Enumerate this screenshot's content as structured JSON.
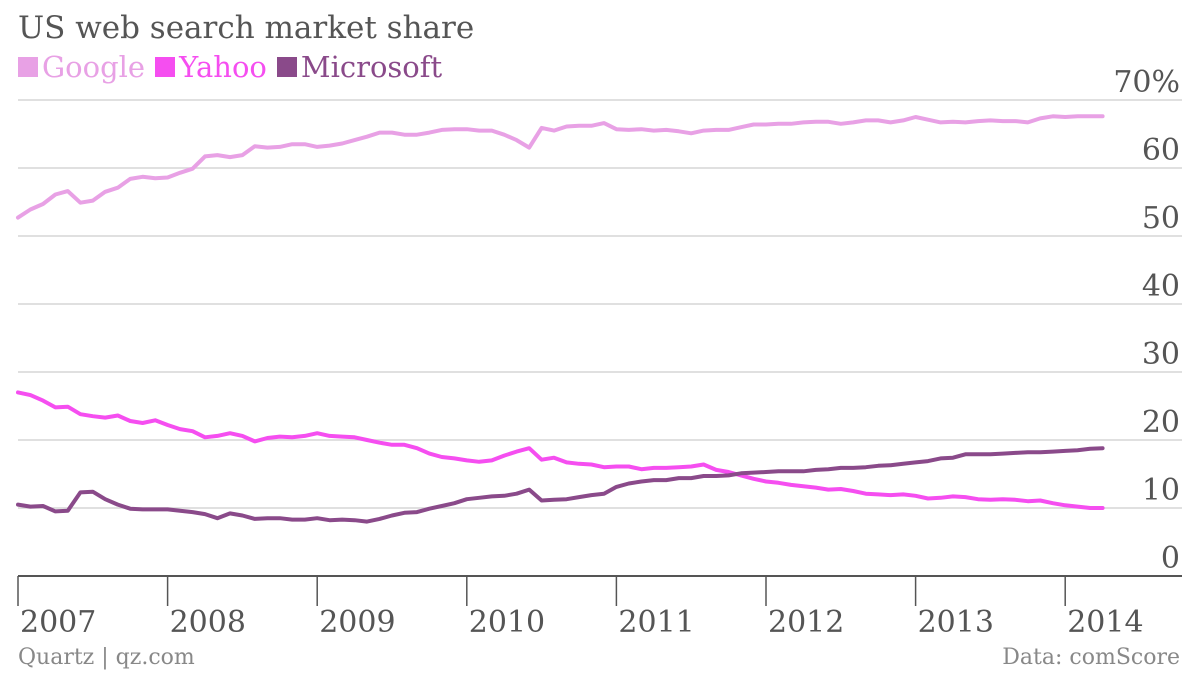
{
  "title": "US web search market share",
  "source_left": "Quartz | qz.com",
  "source_right": "Data: comScore",
  "colors": {
    "google": "#e8a1e5",
    "yahoo": "#f54ef0",
    "microsoft": "#8a4a8a",
    "grid": "#d6d6d6",
    "axis": "#555555"
  },
  "chart_data": {
    "type": "line",
    "title": "US web search market share",
    "ylim": [
      0,
      70
    ],
    "y_ticks": [
      0,
      10,
      20,
      30,
      40,
      50,
      60,
      70
    ],
    "y_tick_labels": [
      "0",
      "10",
      "20",
      "30",
      "40",
      "50",
      "60",
      "70%"
    ],
    "x_ticks": [
      2007,
      2008,
      2009,
      2010,
      2011,
      2012,
      2013,
      2014
    ],
    "x_tick_labels": [
      "2007",
      "2008",
      "2009",
      "2010",
      "2011",
      "2012",
      "2013",
      "2014"
    ],
    "xlim": [
      2007,
      2014.5
    ],
    "grid": true,
    "legend": "top-left",
    "series": [
      {
        "name": "Google",
        "color_key": "google",
        "points": [
          [
            2007.0,
            52.7
          ],
          [
            2007.083,
            53.9
          ],
          [
            2007.167,
            54.7
          ],
          [
            2007.25,
            56.1
          ],
          [
            2007.333,
            56.6
          ],
          [
            2007.417,
            54.9
          ],
          [
            2007.5,
            55.2
          ],
          [
            2007.583,
            56.5
          ],
          [
            2007.667,
            57.1
          ],
          [
            2007.75,
            58.4
          ],
          [
            2007.833,
            58.7
          ],
          [
            2007.917,
            58.5
          ],
          [
            2008.0,
            58.6
          ],
          [
            2008.083,
            59.3
          ],
          [
            2008.167,
            59.9
          ],
          [
            2008.25,
            61.7
          ],
          [
            2008.333,
            61.9
          ],
          [
            2008.417,
            61.6
          ],
          [
            2008.5,
            61.9
          ],
          [
            2008.583,
            63.2
          ],
          [
            2008.667,
            63.0
          ],
          [
            2008.75,
            63.1
          ],
          [
            2008.833,
            63.5
          ],
          [
            2008.917,
            63.5
          ],
          [
            2009.0,
            63.1
          ],
          [
            2009.083,
            63.3
          ],
          [
            2009.167,
            63.6
          ],
          [
            2009.25,
            64.1
          ],
          [
            2009.333,
            64.6
          ],
          [
            2009.417,
            65.2
          ],
          [
            2009.5,
            65.2
          ],
          [
            2009.583,
            64.9
          ],
          [
            2009.667,
            64.9
          ],
          [
            2009.75,
            65.2
          ],
          [
            2009.833,
            65.6
          ],
          [
            2009.917,
            65.7
          ],
          [
            2010.0,
            65.7
          ],
          [
            2010.083,
            65.5
          ],
          [
            2010.167,
            65.5
          ],
          [
            2010.25,
            64.9
          ],
          [
            2010.333,
            64.1
          ],
          [
            2010.417,
            63.0
          ],
          [
            2010.5,
            65.9
          ],
          [
            2010.583,
            65.5
          ],
          [
            2010.667,
            66.1
          ],
          [
            2010.75,
            66.2
          ],
          [
            2010.833,
            66.2
          ],
          [
            2010.917,
            66.6
          ],
          [
            2011.0,
            65.7
          ],
          [
            2011.083,
            65.6
          ],
          [
            2011.167,
            65.7
          ],
          [
            2011.25,
            65.5
          ],
          [
            2011.333,
            65.6
          ],
          [
            2011.417,
            65.4
          ],
          [
            2011.5,
            65.1
          ],
          [
            2011.583,
            65.5
          ],
          [
            2011.667,
            65.6
          ],
          [
            2011.75,
            65.6
          ],
          [
            2011.833,
            66.0
          ],
          [
            2011.917,
            66.4
          ],
          [
            2012.0,
            66.4
          ],
          [
            2012.083,
            66.5
          ],
          [
            2012.167,
            66.5
          ],
          [
            2012.25,
            66.7
          ],
          [
            2012.333,
            66.8
          ],
          [
            2012.417,
            66.8
          ],
          [
            2012.5,
            66.5
          ],
          [
            2012.583,
            66.7
          ],
          [
            2012.667,
            67.0
          ],
          [
            2012.75,
            67.0
          ],
          [
            2012.833,
            66.7
          ],
          [
            2012.917,
            67.0
          ],
          [
            2013.0,
            67.5
          ],
          [
            2013.083,
            67.1
          ],
          [
            2013.167,
            66.7
          ],
          [
            2013.25,
            66.8
          ],
          [
            2013.333,
            66.7
          ],
          [
            2013.417,
            66.9
          ],
          [
            2013.5,
            67.0
          ],
          [
            2013.583,
            66.9
          ],
          [
            2013.667,
            66.9
          ],
          [
            2013.75,
            66.7
          ],
          [
            2013.833,
            67.3
          ],
          [
            2013.917,
            67.6
          ],
          [
            2014.0,
            67.5
          ],
          [
            2014.083,
            67.6
          ],
          [
            2014.167,
            67.6
          ],
          [
            2014.25,
            67.6
          ]
        ]
      },
      {
        "name": "Yahoo",
        "color_key": "yahoo",
        "points": [
          [
            2007.0,
            27.0
          ],
          [
            2007.083,
            26.6
          ],
          [
            2007.167,
            25.8
          ],
          [
            2007.25,
            24.8
          ],
          [
            2007.333,
            24.9
          ],
          [
            2007.417,
            23.8
          ],
          [
            2007.5,
            23.5
          ],
          [
            2007.583,
            23.3
          ],
          [
            2007.667,
            23.6
          ],
          [
            2007.75,
            22.8
          ],
          [
            2007.833,
            22.5
          ],
          [
            2007.917,
            22.9
          ],
          [
            2008.0,
            22.2
          ],
          [
            2008.083,
            21.6
          ],
          [
            2008.167,
            21.3
          ],
          [
            2008.25,
            20.4
          ],
          [
            2008.333,
            20.6
          ],
          [
            2008.417,
            21.0
          ],
          [
            2008.5,
            20.6
          ],
          [
            2008.583,
            19.8
          ],
          [
            2008.667,
            20.3
          ],
          [
            2008.75,
            20.5
          ],
          [
            2008.833,
            20.4
          ],
          [
            2008.917,
            20.6
          ],
          [
            2009.0,
            21.0
          ],
          [
            2009.083,
            20.6
          ],
          [
            2009.167,
            20.5
          ],
          [
            2009.25,
            20.4
          ],
          [
            2009.333,
            20.0
          ],
          [
            2009.417,
            19.6
          ],
          [
            2009.5,
            19.3
          ],
          [
            2009.583,
            19.3
          ],
          [
            2009.667,
            18.8
          ],
          [
            2009.75,
            18.0
          ],
          [
            2009.833,
            17.5
          ],
          [
            2009.917,
            17.3
          ],
          [
            2010.0,
            17.0
          ],
          [
            2010.083,
            16.8
          ],
          [
            2010.167,
            17.0
          ],
          [
            2010.25,
            17.7
          ],
          [
            2010.333,
            18.3
          ],
          [
            2010.417,
            18.8
          ],
          [
            2010.5,
            17.1
          ],
          [
            2010.583,
            17.4
          ],
          [
            2010.667,
            16.7
          ],
          [
            2010.75,
            16.5
          ],
          [
            2010.833,
            16.4
          ],
          [
            2010.917,
            16.0
          ],
          [
            2011.0,
            16.1
          ],
          [
            2011.083,
            16.1
          ],
          [
            2011.167,
            15.7
          ],
          [
            2011.25,
            15.9
          ],
          [
            2011.333,
            15.9
          ],
          [
            2011.417,
            16.0
          ],
          [
            2011.5,
            16.1
          ],
          [
            2011.583,
            16.4
          ],
          [
            2011.667,
            15.6
          ],
          [
            2011.75,
            15.3
          ],
          [
            2011.833,
            14.8
          ],
          [
            2011.917,
            14.3
          ],
          [
            2012.0,
            13.9
          ],
          [
            2012.083,
            13.7
          ],
          [
            2012.167,
            13.4
          ],
          [
            2012.25,
            13.2
          ],
          [
            2012.333,
            13.0
          ],
          [
            2012.417,
            12.7
          ],
          [
            2012.5,
            12.8
          ],
          [
            2012.583,
            12.5
          ],
          [
            2012.667,
            12.1
          ],
          [
            2012.75,
            12.0
          ],
          [
            2012.833,
            11.9
          ],
          [
            2012.917,
            12.0
          ],
          [
            2013.0,
            11.8
          ],
          [
            2013.083,
            11.4
          ],
          [
            2013.167,
            11.5
          ],
          [
            2013.25,
            11.7
          ],
          [
            2013.333,
            11.6
          ],
          [
            2013.417,
            11.3
          ],
          [
            2013.5,
            11.2
          ],
          [
            2013.583,
            11.3
          ],
          [
            2013.667,
            11.2
          ],
          [
            2013.75,
            11.0
          ],
          [
            2013.833,
            11.1
          ],
          [
            2013.917,
            10.7
          ],
          [
            2014.0,
            10.4
          ],
          [
            2014.083,
            10.2
          ],
          [
            2014.167,
            10.0
          ],
          [
            2014.25,
            10.0
          ]
        ]
      },
      {
        "name": "Microsoft",
        "color_key": "microsoft",
        "points": [
          [
            2007.0,
            10.5
          ],
          [
            2007.083,
            10.2
          ],
          [
            2007.167,
            10.3
          ],
          [
            2007.25,
            9.5
          ],
          [
            2007.333,
            9.6
          ],
          [
            2007.417,
            12.3
          ],
          [
            2007.5,
            12.4
          ],
          [
            2007.583,
            11.3
          ],
          [
            2007.667,
            10.5
          ],
          [
            2007.75,
            9.9
          ],
          [
            2007.833,
            9.8
          ],
          [
            2007.917,
            9.8
          ],
          [
            2008.0,
            9.8
          ],
          [
            2008.083,
            9.6
          ],
          [
            2008.167,
            9.4
          ],
          [
            2008.25,
            9.1
          ],
          [
            2008.333,
            8.5
          ],
          [
            2008.417,
            9.2
          ],
          [
            2008.5,
            8.9
          ],
          [
            2008.583,
            8.4
          ],
          [
            2008.667,
            8.5
          ],
          [
            2008.75,
            8.5
          ],
          [
            2008.833,
            8.3
          ],
          [
            2008.917,
            8.3
          ],
          [
            2009.0,
            8.5
          ],
          [
            2009.083,
            8.2
          ],
          [
            2009.167,
            8.3
          ],
          [
            2009.25,
            8.2
          ],
          [
            2009.333,
            8.0
          ],
          [
            2009.417,
            8.4
          ],
          [
            2009.5,
            8.9
          ],
          [
            2009.583,
            9.3
          ],
          [
            2009.667,
            9.4
          ],
          [
            2009.75,
            9.9
          ],
          [
            2009.833,
            10.3
          ],
          [
            2009.917,
            10.7
          ],
          [
            2010.0,
            11.3
          ],
          [
            2010.083,
            11.5
          ],
          [
            2010.167,
            11.7
          ],
          [
            2010.25,
            11.8
          ],
          [
            2010.333,
            12.1
          ],
          [
            2010.417,
            12.7
          ],
          [
            2010.5,
            11.1
          ],
          [
            2010.583,
            11.2
          ],
          [
            2010.667,
            11.3
          ],
          [
            2010.75,
            11.6
          ],
          [
            2010.833,
            11.9
          ],
          [
            2010.917,
            12.1
          ],
          [
            2011.0,
            13.1
          ],
          [
            2011.083,
            13.6
          ],
          [
            2011.167,
            13.9
          ],
          [
            2011.25,
            14.1
          ],
          [
            2011.333,
            14.1
          ],
          [
            2011.417,
            14.4
          ],
          [
            2011.5,
            14.4
          ],
          [
            2011.583,
            14.7
          ],
          [
            2011.667,
            14.7
          ],
          [
            2011.75,
            14.8
          ],
          [
            2011.833,
            15.1
          ],
          [
            2011.917,
            15.2
          ],
          [
            2012.0,
            15.3
          ],
          [
            2012.083,
            15.4
          ],
          [
            2012.167,
            15.4
          ],
          [
            2012.25,
            15.4
          ],
          [
            2012.333,
            15.6
          ],
          [
            2012.417,
            15.7
          ],
          [
            2012.5,
            15.9
          ],
          [
            2012.583,
            15.9
          ],
          [
            2012.667,
            16.0
          ],
          [
            2012.75,
            16.2
          ],
          [
            2012.833,
            16.3
          ],
          [
            2012.917,
            16.5
          ],
          [
            2013.0,
            16.7
          ],
          [
            2013.083,
            16.9
          ],
          [
            2013.167,
            17.3
          ],
          [
            2013.25,
            17.4
          ],
          [
            2013.333,
            17.9
          ],
          [
            2013.417,
            17.9
          ],
          [
            2013.5,
            17.9
          ],
          [
            2013.583,
            18.0
          ],
          [
            2013.667,
            18.1
          ],
          [
            2013.75,
            18.2
          ],
          [
            2013.833,
            18.2
          ],
          [
            2013.917,
            18.3
          ],
          [
            2014.0,
            18.4
          ],
          [
            2014.083,
            18.5
          ],
          [
            2014.167,
            18.7
          ],
          [
            2014.25,
            18.8
          ]
        ]
      }
    ]
  }
}
